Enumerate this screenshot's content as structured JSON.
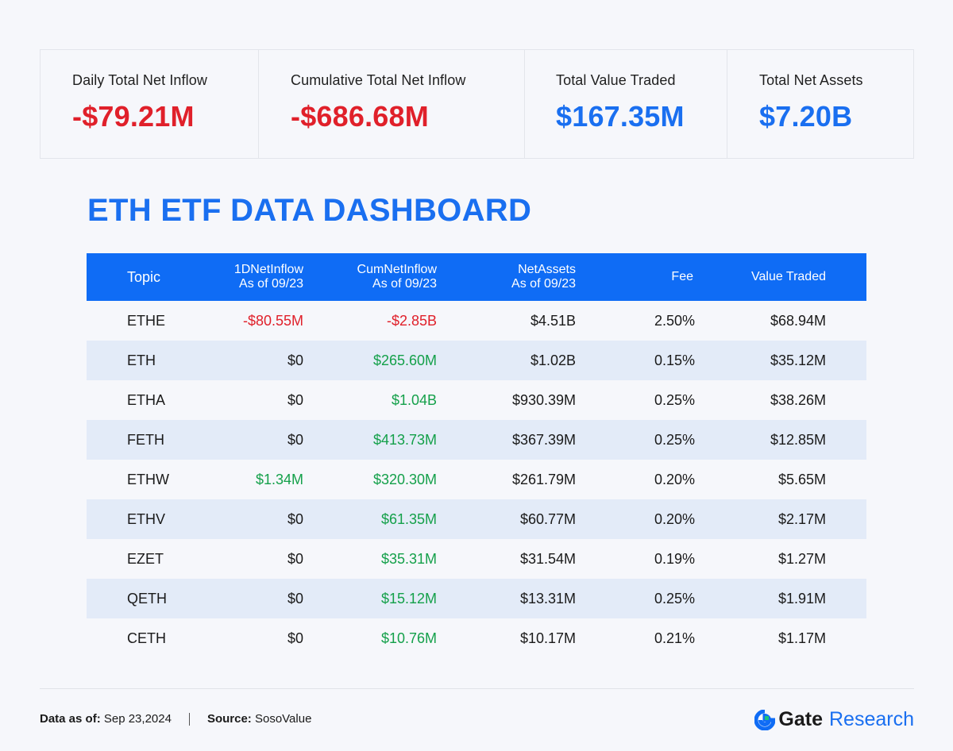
{
  "summary": [
    {
      "label": "Daily Total Net Inflow",
      "value": "-$79.21M",
      "color": "#e0202a"
    },
    {
      "label": "Cumulative Total Net Inflow",
      "value": "-$686.68M",
      "color": "#e0202a"
    },
    {
      "label": "Total Value Traded",
      "value": "$167.35M",
      "color": "#1a6ff0"
    },
    {
      "label": "Total Net Assets",
      "value": "$7.20B",
      "color": "#1a6ff0"
    }
  ],
  "title": "ETH ETF DATA DASHBOARD",
  "table": {
    "headers": {
      "topic": "Topic",
      "inflow_1": "1DNetInflow",
      "inflow_2": "As of 09/23",
      "cum_1": "CumNetInflow",
      "cum_2": "As of 09/23",
      "assets_1": "NetAssets",
      "assets_2": "As of 09/23",
      "fee": "Fee",
      "traded": "Value Traded"
    },
    "rows": [
      {
        "topic": "ETHE",
        "inflow": "-$80.55M",
        "inflow_color": "#e0202a",
        "cum": "-$2.85B",
        "cum_color": "#e0202a",
        "assets": "$4.51B",
        "fee": "2.50%",
        "traded": "$68.94M"
      },
      {
        "topic": "ETH",
        "inflow": "$0",
        "inflow_color": "#1a1a1a",
        "cum": "$265.60M",
        "cum_color": "#14a04a",
        "assets": "$1.02B",
        "fee": "0.15%",
        "traded": "$35.12M"
      },
      {
        "topic": "ETHA",
        "inflow": "$0",
        "inflow_color": "#1a1a1a",
        "cum": "$1.04B",
        "cum_color": "#14a04a",
        "assets": "$930.39M",
        "fee": "0.25%",
        "traded": "$38.26M"
      },
      {
        "topic": "FETH",
        "inflow": "$0",
        "inflow_color": "#1a1a1a",
        "cum": "$413.73M",
        "cum_color": "#14a04a",
        "assets": "$367.39M",
        "fee": "0.25%",
        "traded": "$12.85M"
      },
      {
        "topic": "ETHW",
        "inflow": "$1.34M",
        "inflow_color": "#14a04a",
        "cum": "$320.30M",
        "cum_color": "#14a04a",
        "assets": "$261.79M",
        "fee": "0.20%",
        "traded": "$5.65M"
      },
      {
        "topic": "ETHV",
        "inflow": "$0",
        "inflow_color": "#1a1a1a",
        "cum": "$61.35M",
        "cum_color": "#14a04a",
        "assets": "$60.77M",
        "fee": "0.20%",
        "traded": "$2.17M"
      },
      {
        "topic": "EZET",
        "inflow": "$0",
        "inflow_color": "#1a1a1a",
        "cum": "$35.31M",
        "cum_color": "#14a04a",
        "assets": "$31.54M",
        "fee": "0.19%",
        "traded": "$1.27M"
      },
      {
        "topic": "QETH",
        "inflow": "$0",
        "inflow_color": "#1a1a1a",
        "cum": "$15.12M",
        "cum_color": "#14a04a",
        "assets": "$13.31M",
        "fee": "0.25%",
        "traded": "$1.91M"
      },
      {
        "topic": "CETH",
        "inflow": "$0",
        "inflow_color": "#1a1a1a",
        "cum": "$10.76M",
        "cum_color": "#14a04a",
        "assets": "$10.17M",
        "fee": "0.21%",
        "traded": "$1.17M"
      }
    ]
  },
  "footer": {
    "date_label": "Data as of:",
    "date_value": "Sep 23,2024",
    "source_label": "Source:",
    "source_value": "SosoValue"
  },
  "brand": {
    "logo_icon": "gate-logo-icon",
    "name": "Gate",
    "suffix": "Research",
    "accent": "#1a6ff0",
    "logo_green": "#19c37d"
  }
}
